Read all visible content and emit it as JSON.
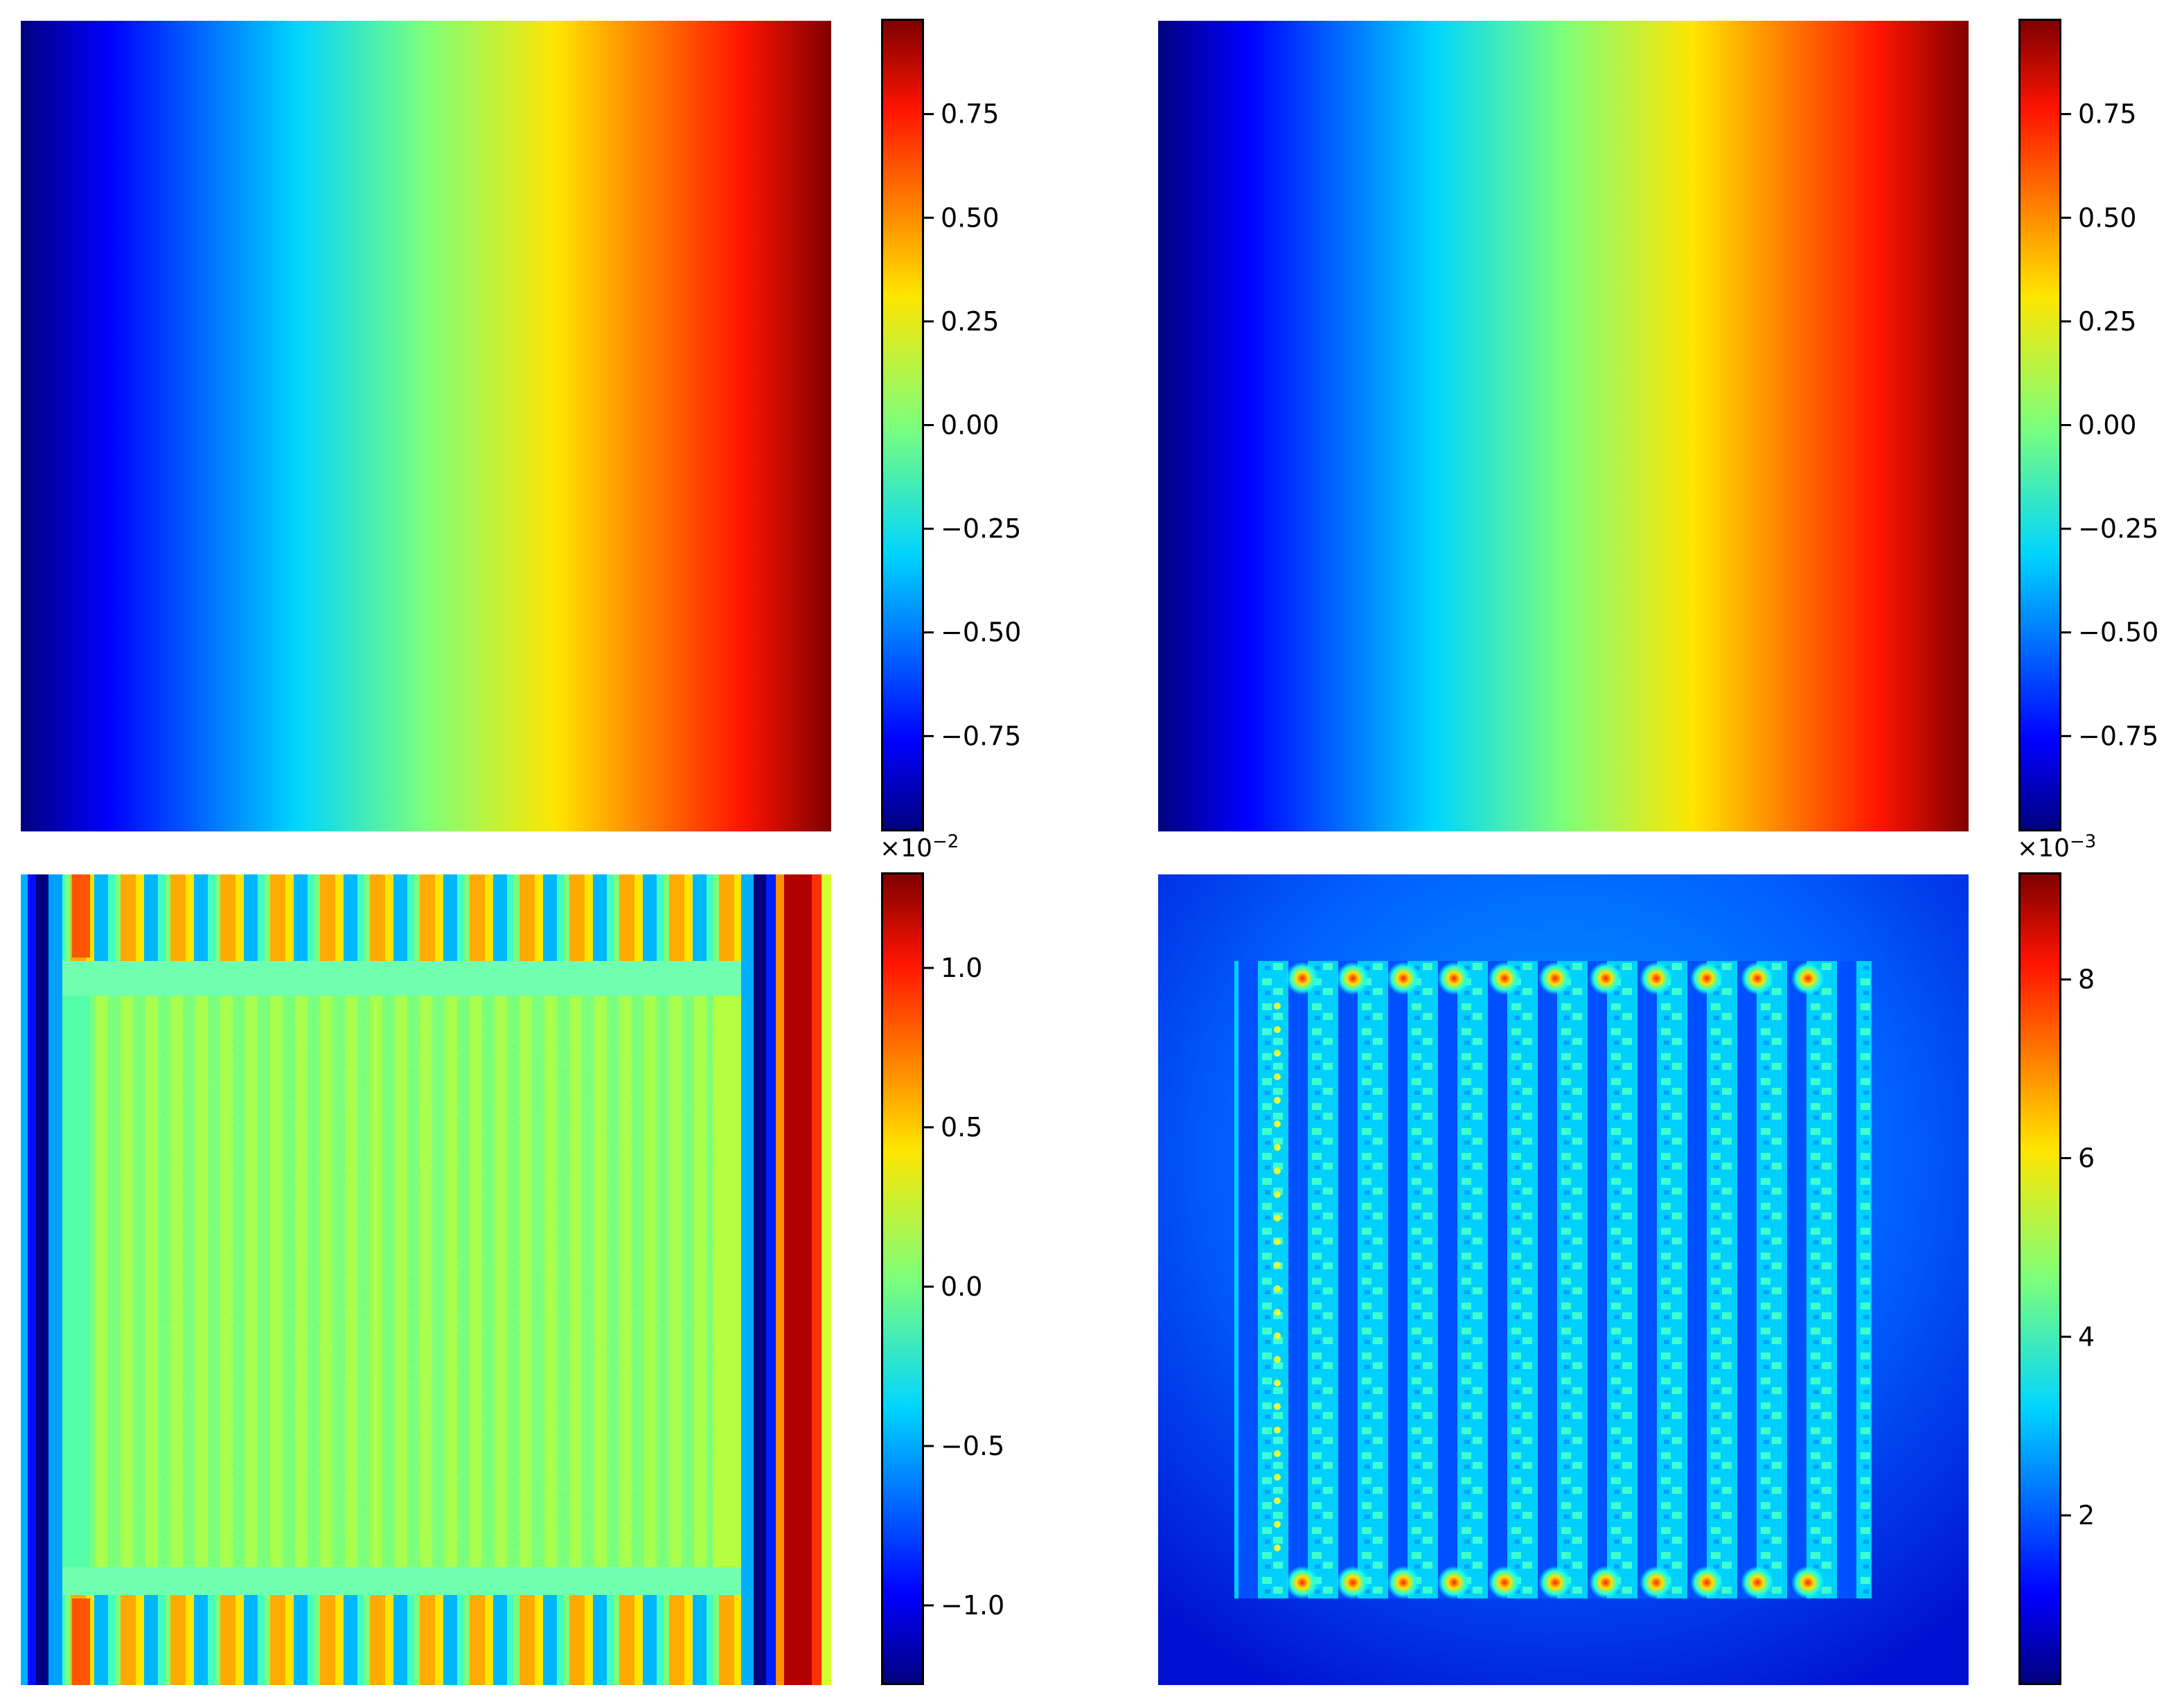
{
  "colormap": "jet",
  "chart_data": [
    {
      "type": "heatmap",
      "description_pattern": "horizontal_gradient",
      "colorbar": {
        "range": [
          -0.98,
          0.98
        ],
        "ticks": [
          0.75,
          0.5,
          0.25,
          0.0,
          -0.25,
          -0.5,
          -0.75
        ],
        "tick_labels": [
          "0.75",
          "0.50",
          "0.25",
          "0.00",
          "−0.25",
          "−0.50",
          "−0.75"
        ],
        "multiplier": ""
      }
    },
    {
      "type": "heatmap",
      "description_pattern": "horizontal_gradient",
      "colorbar": {
        "range": [
          -0.98,
          0.98
        ],
        "ticks": [
          0.75,
          0.5,
          0.25,
          0.0,
          -0.25,
          -0.5,
          -0.75
        ],
        "tick_labels": [
          "0.75",
          "0.50",
          "0.25",
          "0.00",
          "−0.25",
          "−0.50",
          "−0.75"
        ],
        "multiplier": ""
      }
    },
    {
      "type": "heatmap",
      "description_pattern": "stripes_with_boundary_bands",
      "colorbar": {
        "range": [
          -1.25,
          1.3
        ],
        "ticks": [
          1.0,
          0.5,
          0.0,
          -0.5,
          -1.0
        ],
        "tick_labels": [
          "1.0",
          "0.5",
          "0.0",
          "−0.5",
          "−1.0"
        ],
        "multiplier_base": "×10",
        "multiplier_exp": "−2"
      }
    },
    {
      "type": "heatmap",
      "description_pattern": "lattice_of_points",
      "colorbar": {
        "range": [
          0.1,
          9.2
        ],
        "ticks": [
          8,
          6,
          4,
          2
        ],
        "tick_labels": [
          "8",
          "6",
          "4",
          "2"
        ],
        "multiplier_base": "×10",
        "multiplier_exp": "−3"
      }
    }
  ]
}
